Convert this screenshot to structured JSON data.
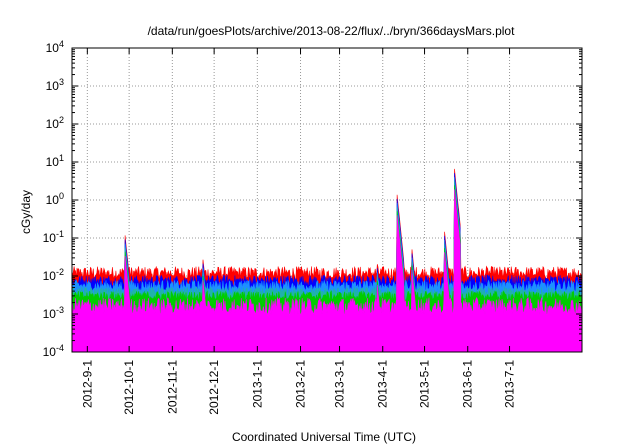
{
  "chart_data": {
    "type": "area",
    "title": "/data/run/goesPlots/archive/2013-08-22/flux/../bryn/366daysMars.plot",
    "xlabel": "Coordinated Universal Time (UTC)",
    "ylabel": "cGy/day",
    "yscale": "log",
    "ylim": [
      0.0001,
      10000
    ],
    "xlim": [
      "2012-08-21",
      "2013-08-22"
    ],
    "grid": true,
    "legend": "none",
    "y_tick_labels": [
      {
        "value": 0.0001,
        "base": "10",
        "exp": "-4"
      },
      {
        "value": 0.001,
        "base": "10",
        "exp": "-3"
      },
      {
        "value": 0.01,
        "base": "10",
        "exp": "-2"
      },
      {
        "value": 0.1,
        "base": "10",
        "exp": "-1"
      },
      {
        "value": 1,
        "base": "10",
        "exp": "0"
      },
      {
        "value": 10,
        "base": "10",
        "exp": "1"
      },
      {
        "value": 100,
        "base": "10",
        "exp": "2"
      },
      {
        "value": 1000,
        "base": "10",
        "exp": "3"
      },
      {
        "value": 10000,
        "base": "10",
        "exp": "4"
      }
    ],
    "x_ticks": [
      {
        "date": "2012-09-01",
        "label": "2012-9-1"
      },
      {
        "date": "2012-10-01",
        "label": "2012-10-1"
      },
      {
        "date": "2012-11-01",
        "label": "2012-11-1"
      },
      {
        "date": "2012-12-01",
        "label": "2012-12-1"
      },
      {
        "date": "2013-01-01",
        "label": "2013-1-1"
      },
      {
        "date": "2013-02-01",
        "label": "2013-2-1"
      },
      {
        "date": "2013-03-01",
        "label": "2013-3-1"
      },
      {
        "date": "2013-04-01",
        "label": "2013-4-1"
      },
      {
        "date": "2013-05-01",
        "label": "2013-5-1"
      },
      {
        "date": "2013-06-01",
        "label": "2013-6-1"
      },
      {
        "date": "2013-07-01",
        "label": "2013-7-1"
      }
    ],
    "series": [
      {
        "color": "#ff0000",
        "baseline": 0.012,
        "noise": 0.35
      },
      {
        "color": "#0000ff",
        "baseline": 0.0075,
        "noise": 0.3
      },
      {
        "color": "#1e90ff",
        "baseline": 0.0055,
        "noise": 0.3
      },
      {
        "color": "#20b2aa",
        "baseline": 0.0038,
        "noise": 0.25
      },
      {
        "color": "#00cc00",
        "baseline": 0.003,
        "noise": 0.25
      },
      {
        "color": "#ff00ff",
        "baseline": 0.0016,
        "noise": 0.45
      }
    ],
    "events": [
      {
        "date": "2012-09-28",
        "peak": 0.13
      },
      {
        "date": "2012-11-23",
        "peak": 0.028
      },
      {
        "date": "2013-03-28",
        "peak": 0.022
      },
      {
        "date": "2013-04-11",
        "peak": 1.8
      },
      {
        "date": "2013-04-22",
        "peak": 0.05
      },
      {
        "date": "2013-05-15",
        "peak": 0.2
      },
      {
        "date": "2013-05-22",
        "peak": 10
      }
    ],
    "dips": [
      {
        "date": "2013-05-16",
        "min": 0.00014
      },
      {
        "date": "2013-05-24",
        "min": 0.0005
      }
    ]
  }
}
